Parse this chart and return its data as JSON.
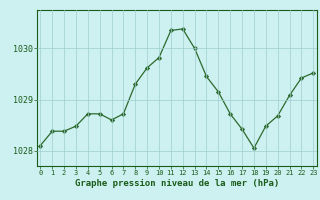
{
  "x": [
    0,
    1,
    2,
    3,
    4,
    5,
    6,
    7,
    8,
    9,
    10,
    11,
    12,
    13,
    14,
    15,
    16,
    17,
    18,
    19,
    20,
    21,
    22,
    23
  ],
  "y": [
    1028.1,
    1028.38,
    1028.38,
    1028.48,
    1028.72,
    1028.72,
    1028.6,
    1028.72,
    1029.3,
    1029.62,
    1029.82,
    1030.35,
    1030.38,
    1030.0,
    1029.45,
    1029.15,
    1028.72,
    1028.42,
    1028.05,
    1028.48,
    1028.68,
    1029.08,
    1029.42,
    1029.52
  ],
  "line_color": "#2d6a2d",
  "marker_color": "#2d6a2d",
  "bg_color": "#cdf0f0",
  "grid_color": "#9ecece",
  "text_color": "#1a5c1a",
  "xlabel": "Graphe pression niveau de la mer (hPa)",
  "yticks": [
    1028,
    1029,
    1030
  ],
  "ylim": [
    1027.7,
    1030.75
  ],
  "xlim": [
    -0.3,
    23.3
  ],
  "xtick_labels": [
    "0",
    "1",
    "2",
    "3",
    "4",
    "5",
    "6",
    "7",
    "8",
    "9",
    "10",
    "11",
    "12",
    "13",
    "14",
    "15",
    "16",
    "17",
    "18",
    "19",
    "20",
    "21",
    "22",
    "23"
  ]
}
